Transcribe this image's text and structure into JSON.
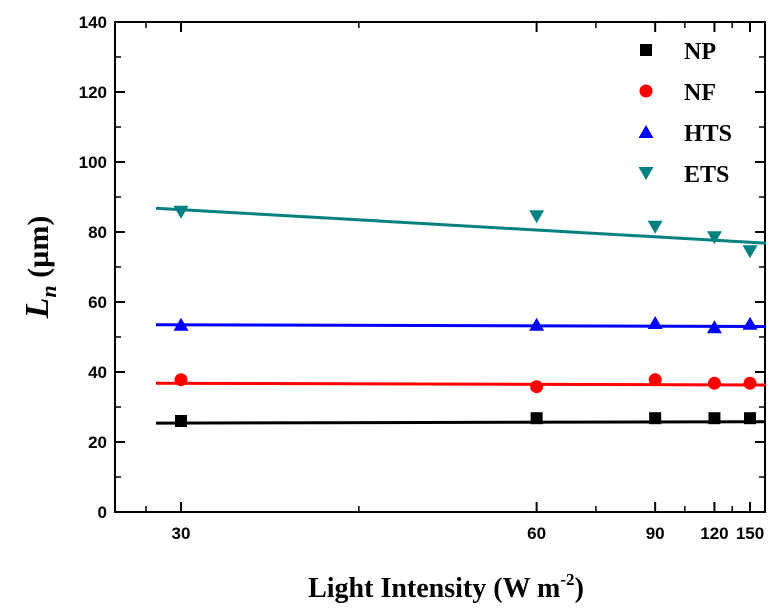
{
  "chart_data": {
    "type": "scatter",
    "xlabel": {
      "main": "Light Intensity (W m",
      "sup": "-2",
      "end": ")"
    },
    "ylabel": {
      "var": "L",
      "sub": "n",
      "unit": " (µm)"
    },
    "xscale": "reciprocal",
    "x_ticks": [
      30,
      60,
      90,
      120,
      150
    ],
    "y_ticks": [
      0,
      20,
      40,
      60,
      80,
      100,
      120,
      140
    ],
    "ylim": [
      0,
      140
    ],
    "legend_position": "top-right",
    "series": [
      {
        "name": "NP",
        "marker": "square",
        "color": "#000000",
        "x": [
          30,
          60,
          90,
          120,
          150
        ],
        "y": [
          26,
          26.8,
          26.8,
          26.8,
          26.8
        ],
        "fit": [
          25.4,
          25.8
        ]
      },
      {
        "name": "NF",
        "marker": "circle",
        "color": "#ff0000",
        "x": [
          30,
          60,
          90,
          120,
          150
        ],
        "y": [
          37.8,
          35.8,
          37.8,
          36.8,
          36.8
        ],
        "fit": [
          36.8,
          36.3
        ]
      },
      {
        "name": "HTS",
        "marker": "triangle-up",
        "color": "#0000ff",
        "x": [
          30,
          60,
          90,
          120,
          150
        ],
        "y": [
          53.5,
          53.5,
          54,
          52.8,
          53.8
        ],
        "fit": [
          53.5,
          53
        ]
      },
      {
        "name": "ETS",
        "marker": "triangle-down",
        "color": "#008080",
        "x": [
          30,
          60,
          90,
          120,
          150
        ],
        "y": [
          85.8,
          84.5,
          81.5,
          78.5,
          74.5
        ],
        "fit": [
          86.8,
          76.8
        ]
      }
    ]
  }
}
